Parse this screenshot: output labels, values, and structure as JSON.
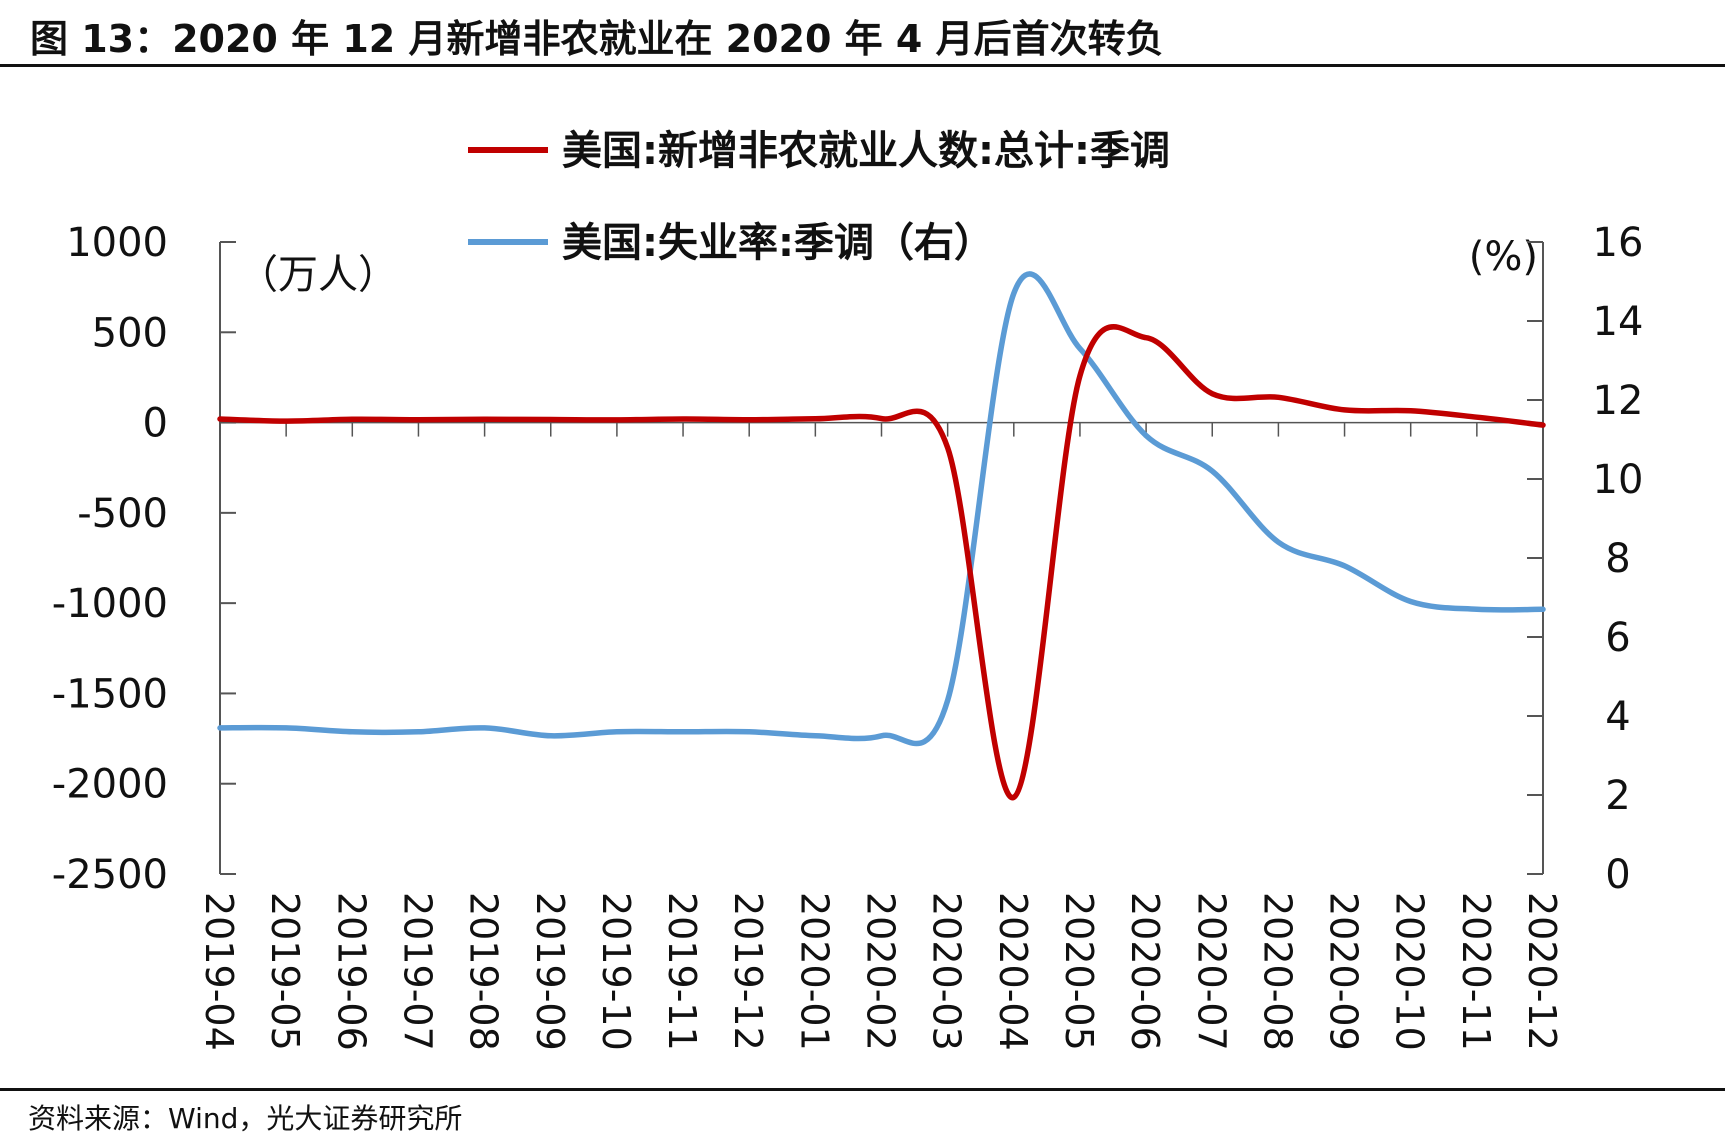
{
  "header": {
    "title": "图 13：2020 年 12 月新增非农就业在 2020 年 4 月后首次转负"
  },
  "footer": {
    "source": "资料来源：Wind，光大证券研究所"
  },
  "chart_data": {
    "type": "line",
    "left_unit": "（万人）",
    "right_unit": "(%)",
    "left_ylim": [
      -2500,
      1000
    ],
    "right_ylim": [
      0,
      16
    ],
    "left_ticks": [
      "1000",
      "500",
      "0",
      "-500",
      "-1000",
      "-1500",
      "-2000",
      "-2500"
    ],
    "right_ticks": [
      "16",
      "14",
      "12",
      "10",
      "8",
      "6",
      "4",
      "2",
      "0"
    ],
    "x": [
      "2019-04",
      "2019-05",
      "2019-06",
      "2019-07",
      "2019-08",
      "2019-09",
      "2019-10",
      "2019-11",
      "2019-12",
      "2020-01",
      "2020-02",
      "2020-03",
      "2020-04",
      "2020-05",
      "2020-06",
      "2020-07",
      "2020-08",
      "2020-09",
      "2020-10",
      "2020-11",
      "2020-12"
    ],
    "series": [
      {
        "name": "美国:新增非农就业人数:总计:季调",
        "axis": "left",
        "color": "#c00000",
        "values": [
          20,
          8,
          18,
          16,
          18,
          17,
          15,
          20,
          16,
          21,
          22,
          -140,
          -2075,
          260,
          470,
          160,
          140,
          70,
          65,
          30,
          -14
        ]
      },
      {
        "name": "美国:失业率:季调（右）",
        "axis": "right",
        "color": "#5b9bd5",
        "values": [
          3.7,
          3.7,
          3.6,
          3.6,
          3.7,
          3.5,
          3.6,
          3.6,
          3.6,
          3.5,
          3.5,
          4.4,
          14.7,
          13.3,
          11.1,
          10.2,
          8.4,
          7.8,
          6.9,
          6.7,
          6.7
        ]
      }
    ],
    "legend_position": "top-center",
    "grid": false
  }
}
